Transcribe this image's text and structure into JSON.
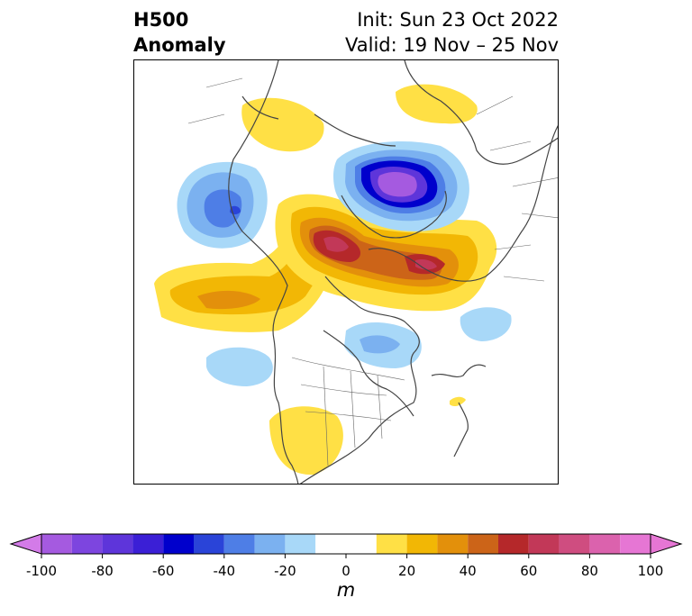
{
  "title": {
    "left_line1": "H500",
    "left_line2": "Anomaly",
    "right_line1": "Init: Sun 23 Oct 2022",
    "right_line2": "Valid: 19 Nov – 25 Nov"
  },
  "colorbar": {
    "unit": "m",
    "tick_labels": [
      "-100",
      "-80",
      "-60",
      "-40",
      "-20",
      "0",
      "20",
      "40",
      "60",
      "80",
      "100"
    ],
    "tick_values": [
      -100,
      -80,
      -60,
      -40,
      -20,
      0,
      20,
      40,
      60,
      80,
      100
    ],
    "bins": [
      -100,
      -90,
      -80,
      -70,
      -60,
      -50,
      -40,
      -30,
      -20,
      -10,
      10,
      20,
      30,
      40,
      50,
      60,
      70,
      80,
      90,
      100
    ],
    "colors": [
      "#a55ae0",
      "#7d45df",
      "#5e35da",
      "#3b1fd6",
      "#0000cc",
      "#2a44d8",
      "#4e7ee6",
      "#7bb1f0",
      "#a8d8f8",
      "#ffffff",
      "#ffe045",
      "#f2b705",
      "#e3900b",
      "#cc6418",
      "#b5282a",
      "#c23858",
      "#cf4d80",
      "#db62ad",
      "#e676d4"
    ],
    "under_color": "#d37be8",
    "over_color": "#e676d4"
  },
  "map": {
    "region": "Northern Hemisphere polar stereographic (North America / Arctic)",
    "colors": {
      "land_outline": "#444444",
      "positive_yellow": "#ffe045",
      "positive_orange": "#f2b705",
      "positive_darkorange": "#e3900b",
      "positive_red": "#b5282a",
      "positive_pink": "#c23858",
      "negative_lightblue": "#a8d8f8",
      "negative_blue": "#7bb1f0",
      "negative_midblue": "#4e7ee6",
      "negative_darkblue": "#0000cc",
      "negative_purple": "#a55ae0"
    }
  }
}
